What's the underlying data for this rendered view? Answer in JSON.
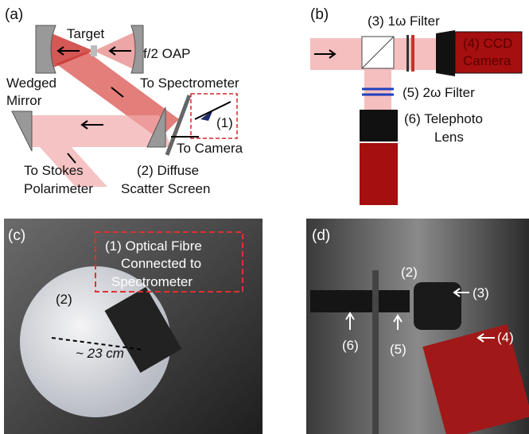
{
  "panels": [
    {
      "label": "(a)",
      "texts": [
        "Target",
        "f/2 OAP",
        "To Spectrometer",
        "Wedged",
        "Mirror",
        "(1)",
        "To Camera",
        "To Stokes",
        "Polarimeter",
        "(2) Diffuse",
        "Scatter Screen"
      ]
    },
    {
      "label": "(b)",
      "texts": [
        "(3) 1ω Filter",
        "(4) CCD",
        "Camera",
        "(5) 2ω Filter",
        "(6) Telephoto",
        "Lens"
      ]
    },
    {
      "label": "(c)",
      "texts": [
        "(1) Optical Fibre",
        "Connected to",
        "Spectrometer",
        "(2)",
        "~ 23 cm"
      ]
    },
    {
      "label": "(d)",
      "texts": [
        "(2)",
        "(3)",
        "(4)",
        "(5)",
        "(6)"
      ]
    }
  ]
}
